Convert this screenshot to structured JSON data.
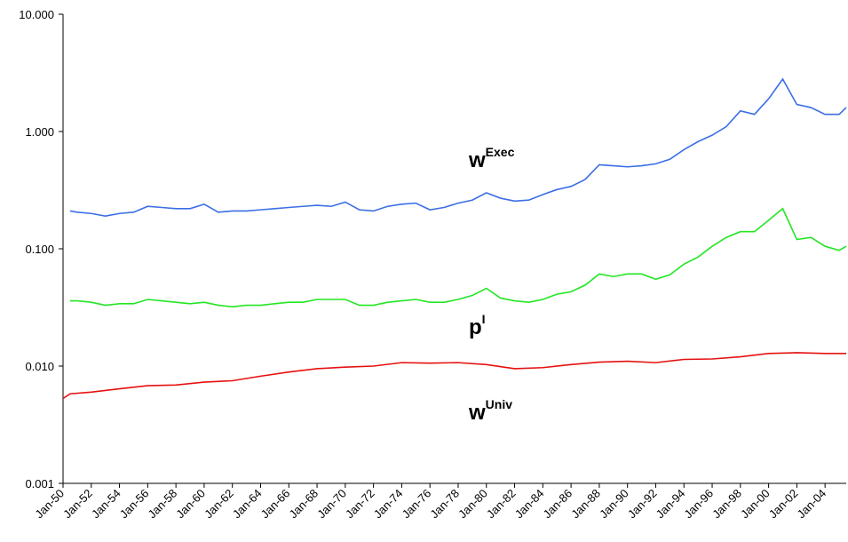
{
  "chart_data": {
    "type": "line",
    "log_scale_y": true,
    "xlim": [
      1950,
      2005.5
    ],
    "ylim": [
      0.001,
      10
    ],
    "yticks": [
      {
        "value": 0.001,
        "label": "0.001"
      },
      {
        "value": 0.01,
        "label": "0.010"
      },
      {
        "value": 0.1,
        "label": "0.100"
      },
      {
        "value": 1,
        "label": "1.000"
      },
      {
        "value": 10,
        "label": "10.000"
      }
    ],
    "xticks": [
      {
        "value": 1950,
        "label": "Jan-50"
      },
      {
        "value": 1952,
        "label": "Jan-52"
      },
      {
        "value": 1954,
        "label": "Jan-54"
      },
      {
        "value": 1956,
        "label": "Jan-56"
      },
      {
        "value": 1958,
        "label": "Jan-58"
      },
      {
        "value": 1960,
        "label": "Jan-60"
      },
      {
        "value": 1962,
        "label": "Jan-62"
      },
      {
        "value": 1964,
        "label": "Jan-64"
      },
      {
        "value": 1966,
        "label": "Jan-66"
      },
      {
        "value": 1968,
        "label": "Jan-68"
      },
      {
        "value": 1970,
        "label": "Jan-70"
      },
      {
        "value": 1972,
        "label": "Jan-72"
      },
      {
        "value": 1974,
        "label": "Jan-74"
      },
      {
        "value": 1976,
        "label": "Jan-76"
      },
      {
        "value": 1978,
        "label": "Jan-78"
      },
      {
        "value": 1980,
        "label": "Jan-80"
      },
      {
        "value": 1982,
        "label": "Jan-82"
      },
      {
        "value": 1984,
        "label": "Jan-84"
      },
      {
        "value": 1986,
        "label": "Jan-86"
      },
      {
        "value": 1988,
        "label": "Jan-88"
      },
      {
        "value": 1990,
        "label": "Jan-90"
      },
      {
        "value": 1992,
        "label": "Jan-92"
      },
      {
        "value": 1994,
        "label": "Jan-94"
      },
      {
        "value": 1996,
        "label": "Jan-96"
      },
      {
        "value": 1998,
        "label": "Jan-98"
      },
      {
        "value": 2000,
        "label": "Jan-00"
      },
      {
        "value": 2002,
        "label": "Jan-02"
      },
      {
        "value": 2004,
        "label": "Jan-04"
      }
    ],
    "series": [
      {
        "name": "w",
        "name_sup": "Exec",
        "color": "#3b6ee6",
        "x": [
          1950.5,
          1951,
          1952,
          1953,
          1954,
          1955,
          1956,
          1957,
          1958,
          1959,
          1960,
          1961,
          1962,
          1963,
          1964,
          1965,
          1966,
          1967,
          1968,
          1969,
          1970,
          1971,
          1972,
          1973,
          1974,
          1975,
          1976,
          1977,
          1978,
          1979,
          1980,
          1981,
          1982,
          1983,
          1984,
          1985,
          1986,
          1987,
          1988,
          1989,
          1990,
          1991,
          1992,
          1993,
          1994,
          1995,
          1996,
          1997,
          1998,
          1999,
          2000,
          2001,
          2002,
          2003,
          2004,
          2005,
          2005.5
        ],
        "values": [
          0.21,
          0.205,
          0.2,
          0.19,
          0.2,
          0.205,
          0.23,
          0.225,
          0.22,
          0.22,
          0.24,
          0.205,
          0.21,
          0.21,
          0.215,
          0.22,
          0.225,
          0.23,
          0.235,
          0.23,
          0.25,
          0.215,
          0.21,
          0.23,
          0.24,
          0.245,
          0.215,
          0.225,
          0.245,
          0.26,
          0.3,
          0.27,
          0.255,
          0.26,
          0.29,
          0.32,
          0.34,
          0.39,
          0.52,
          0.51,
          0.5,
          0.51,
          0.53,
          0.58,
          0.7,
          0.82,
          0.93,
          1.1,
          1.5,
          1.4,
          1.9,
          2.8,
          1.7,
          1.6,
          1.4,
          1.4,
          1.6
        ]
      },
      {
        "name": "p",
        "name_sup": "I",
        "color": "#22e622",
        "x": [
          1950.5,
          1951,
          1952,
          1953,
          1954,
          1955,
          1956,
          1957,
          1958,
          1959,
          1960,
          1961,
          1962,
          1963,
          1964,
          1965,
          1966,
          1967,
          1968,
          1969,
          1970,
          1971,
          1972,
          1973,
          1974,
          1975,
          1976,
          1977,
          1978,
          1979,
          1980,
          1981,
          1982,
          1983,
          1984,
          1985,
          1986,
          1987,
          1988,
          1989,
          1990,
          1991,
          1992,
          1993,
          1994,
          1995,
          1996,
          1997,
          1998,
          1999,
          2000,
          2001,
          2002,
          2003,
          2004,
          2005,
          2005.5
        ],
        "values": [
          0.036,
          0.036,
          0.035,
          0.033,
          0.034,
          0.034,
          0.037,
          0.036,
          0.035,
          0.034,
          0.035,
          0.033,
          0.032,
          0.033,
          0.033,
          0.034,
          0.035,
          0.035,
          0.037,
          0.037,
          0.037,
          0.033,
          0.033,
          0.035,
          0.036,
          0.037,
          0.035,
          0.035,
          0.037,
          0.04,
          0.046,
          0.038,
          0.036,
          0.035,
          0.037,
          0.041,
          0.043,
          0.049,
          0.061,
          0.058,
          0.061,
          0.061,
          0.055,
          0.06,
          0.074,
          0.085,
          0.105,
          0.125,
          0.14,
          0.14,
          0.175,
          0.22,
          0.12,
          0.125,
          0.105,
          0.097,
          0.105
        ]
      },
      {
        "name": "w",
        "name_sup": "Univ",
        "color": "#e61010",
        "x": [
          1950,
          1950.5,
          1952,
          1954,
          1956,
          1958,
          1960,
          1962,
          1964,
          1966,
          1968,
          1970,
          1972,
          1974,
          1976,
          1978,
          1980,
          1982,
          1984,
          1986,
          1988,
          1990,
          1992,
          1994,
          1996,
          1998,
          2000,
          2002,
          2004,
          2005.5
        ],
        "values": [
          0.0053,
          0.0058,
          0.006,
          0.0064,
          0.0068,
          0.0069,
          0.0073,
          0.0075,
          0.0082,
          0.0089,
          0.0095,
          0.0098,
          0.01,
          0.0107,
          0.0106,
          0.0107,
          0.0103,
          0.0095,
          0.0097,
          0.0103,
          0.0108,
          0.011,
          0.0107,
          0.0114,
          0.0115,
          0.012,
          0.0128,
          0.013,
          0.0128,
          0.0128
        ]
      }
    ]
  }
}
